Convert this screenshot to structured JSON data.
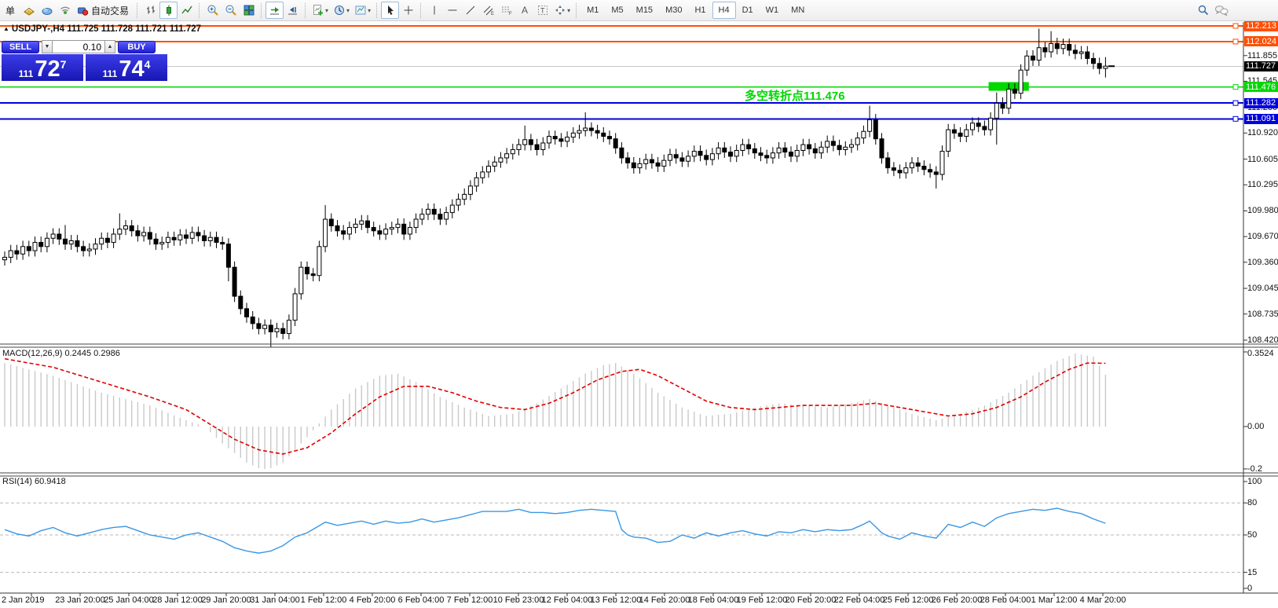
{
  "toolbar": {
    "order_label": "单",
    "autotrade_label": "自动交易",
    "timeframes": [
      "M1",
      "M5",
      "M15",
      "M30",
      "H1",
      "H4",
      "D1",
      "W1",
      "MN"
    ],
    "active_timeframe": "H4"
  },
  "chart": {
    "title": "USDJPY-,H4 111.725 111.728 111.721 111.727",
    "one_click": {
      "sell_label": "SELL",
      "buy_label": "BUY",
      "volume": "0.10",
      "sell_price_main": "111",
      "sell_price_big": "72",
      "sell_price_sup": "7",
      "buy_price_main": "111",
      "buy_price_big": "74",
      "buy_price_sup": "4"
    },
    "annotation": {
      "text": "多空转折点111.476",
      "color": "#00d800"
    }
  },
  "chart_data": {
    "type": "candlestick",
    "symbol": "USDJPY-",
    "period": "H4",
    "ohlc_display": {
      "open": "111.725",
      "high": "111.728",
      "low": "111.721",
      "close": "111.727"
    },
    "price_axis": {
      "max": 112.213,
      "min": 108.42,
      "ticks": [
        112.185,
        111.855,
        111.545,
        111.23,
        110.92,
        110.605,
        110.295,
        109.98,
        109.67,
        109.36,
        109.045,
        108.735,
        108.42
      ]
    },
    "levels": [
      {
        "price": 112.213,
        "color": "#ff4f02",
        "label": "112.213",
        "width": 2,
        "handle": true
      },
      {
        "price": 112.024,
        "color": "#ff4f02",
        "label": "112.024",
        "width": 2,
        "handle": true
      },
      {
        "price": 111.727,
        "color": "#c8c8c8",
        "label": "111.727",
        "label_bg": "#000000",
        "width": 1,
        "handle": false,
        "current": true
      },
      {
        "price": 111.476,
        "color": "#00d800",
        "label": "111.476",
        "width": 1.5,
        "handle": true
      },
      {
        "price": 111.282,
        "color": "#0000dd",
        "label": "111.282",
        "width": 2,
        "handle": true
      },
      {
        "price": 111.091,
        "color": "#0000dd",
        "label": "111.091",
        "width": 2,
        "handle": true
      }
    ],
    "highlight_box": {
      "from_bar": 163,
      "to_bar": 169,
      "price_top": 111.535,
      "price_bottom": 111.43,
      "color": "#00d800"
    },
    "candles": {
      "first_open": 109.39,
      "wick": 0.07,
      "closes": [
        109.42,
        109.5,
        109.46,
        109.55,
        109.5,
        109.6,
        109.55,
        109.65,
        109.7,
        109.64,
        109.58,
        109.62,
        109.55,
        109.5,
        109.52,
        109.58,
        109.65,
        109.6,
        109.7,
        109.76,
        109.8,
        109.74,
        109.68,
        109.72,
        109.64,
        109.58,
        109.6,
        109.66,
        109.63,
        109.69,
        109.65,
        109.72,
        109.68,
        109.62,
        109.66,
        109.6,
        109.58,
        109.3,
        108.95,
        108.8,
        108.7,
        108.62,
        108.56,
        108.6,
        108.52,
        108.56,
        108.5,
        108.66,
        108.98,
        109.3,
        109.22,
        109.2,
        109.55,
        109.88,
        109.8,
        109.74,
        109.7,
        109.78,
        109.82,
        109.86,
        109.78,
        109.74,
        109.7,
        109.76,
        109.78,
        109.82,
        109.7,
        109.78,
        109.88,
        109.94,
        110.0,
        109.94,
        109.88,
        109.96,
        110.05,
        110.12,
        110.18,
        110.28,
        110.38,
        110.45,
        110.52,
        110.57,
        110.62,
        110.67,
        110.72,
        110.78,
        110.84,
        110.78,
        110.72,
        110.8,
        110.88,
        110.85,
        110.82,
        110.87,
        110.92,
        110.95,
        110.98,
        110.95,
        110.92,
        110.88,
        110.85,
        110.74,
        110.62,
        110.56,
        110.5,
        110.55,
        110.6,
        110.56,
        110.52,
        110.59,
        110.66,
        110.62,
        110.58,
        110.64,
        110.7,
        110.65,
        110.6,
        110.67,
        110.74,
        110.69,
        110.64,
        110.71,
        110.78,
        110.73,
        110.68,
        110.65,
        110.62,
        110.68,
        110.74,
        110.69,
        110.64,
        110.71,
        110.78,
        110.73,
        110.68,
        110.75,
        110.82,
        110.77,
        110.72,
        110.75,
        110.78,
        110.86,
        110.94,
        111.08,
        110.85,
        110.62,
        110.5,
        110.47,
        110.44,
        110.5,
        110.56,
        110.52,
        110.48,
        110.45,
        110.42,
        110.7,
        110.96,
        110.92,
        110.88,
        110.96,
        111.04,
        111.0,
        110.96,
        111.1,
        111.28,
        111.22,
        111.45,
        111.4,
        111.68,
        111.85,
        111.8,
        111.95,
        111.9,
        112.0,
        111.94,
        111.99,
        111.92,
        111.88,
        111.9,
        111.82,
        111.76,
        111.7,
        111.727
      ],
      "spikes": {
        "10": [
          0.1,
          0
        ],
        "19": [
          0.12,
          0
        ],
        "37": [
          0,
          0.1
        ],
        "44": [
          0,
          0.12
        ],
        "53": [
          0.1,
          0
        ],
        "86": [
          0.1,
          0
        ],
        "96": [
          0.12,
          0
        ],
        "143": [
          0.1,
          0
        ],
        "154": [
          0,
          0.1
        ],
        "164": [
          0.06,
          0.25
        ],
        "171": [
          0.16,
          0
        ],
        "173": [
          0.08,
          0
        ],
        "182": [
          0.04,
          0.04
        ]
      }
    },
    "macd": {
      "label": "MACD(12,26,9) 0.2445 0.2986",
      "name": "MACD",
      "params": "12,26,9",
      "value_main": 0.2445,
      "value_signal": 0.2986,
      "axis_ticks": [
        {
          "v": 0.3524,
          "label": "0.3524"
        },
        {
          "v": 0,
          "label": "0.00"
        },
        {
          "v": -0.2,
          "label": "-0.2"
        }
      ],
      "hist_color": "#c9c9c9",
      "signal_color": "#e00000",
      "hist_keypoints": [
        [
          0,
          0.3
        ],
        [
          8,
          0.24
        ],
        [
          16,
          0.16
        ],
        [
          24,
          0.1
        ],
        [
          30,
          0.03
        ],
        [
          33,
          0.0
        ],
        [
          36,
          -0.08
        ],
        [
          40,
          -0.17
        ],
        [
          43,
          -0.21
        ],
        [
          46,
          -0.17
        ],
        [
          50,
          -0.05
        ],
        [
          54,
          0.08
        ],
        [
          58,
          0.18
        ],
        [
          62,
          0.24
        ],
        [
          65,
          0.25
        ],
        [
          68,
          0.21
        ],
        [
          72,
          0.14
        ],
        [
          76,
          0.09
        ],
        [
          80,
          0.05
        ],
        [
          84,
          0.06
        ],
        [
          88,
          0.11
        ],
        [
          92,
          0.18
        ],
        [
          96,
          0.25
        ],
        [
          99,
          0.29
        ],
        [
          101,
          0.3
        ],
        [
          104,
          0.25
        ],
        [
          108,
          0.16
        ],
        [
          112,
          0.09
        ],
        [
          116,
          0.05
        ],
        [
          120,
          0.06
        ],
        [
          124,
          0.09
        ],
        [
          128,
          0.11
        ],
        [
          132,
          0.1
        ],
        [
          136,
          0.09
        ],
        [
          140,
          0.11
        ],
        [
          143,
          0.13
        ],
        [
          146,
          0.1
        ],
        [
          150,
          0.06
        ],
        [
          154,
          0.03
        ],
        [
          158,
          0.06
        ],
        [
          162,
          0.1
        ],
        [
          166,
          0.16
        ],
        [
          170,
          0.24
        ],
        [
          174,
          0.31
        ],
        [
          177,
          0.345
        ],
        [
          180,
          0.33
        ],
        [
          182,
          0.2445
        ]
      ],
      "signal_keypoints": [
        [
          0,
          0.32
        ],
        [
          8,
          0.28
        ],
        [
          16,
          0.21
        ],
        [
          24,
          0.14
        ],
        [
          30,
          0.08
        ],
        [
          34,
          0.01
        ],
        [
          38,
          -0.06
        ],
        [
          42,
          -0.11
        ],
        [
          46,
          -0.13
        ],
        [
          50,
          -0.1
        ],
        [
          54,
          -0.03
        ],
        [
          58,
          0.06
        ],
        [
          62,
          0.14
        ],
        [
          66,
          0.19
        ],
        [
          70,
          0.19
        ],
        [
          74,
          0.16
        ],
        [
          78,
          0.12
        ],
        [
          82,
          0.09
        ],
        [
          86,
          0.08
        ],
        [
          90,
          0.11
        ],
        [
          94,
          0.16
        ],
        [
          98,
          0.22
        ],
        [
          102,
          0.26
        ],
        [
          105,
          0.27
        ],
        [
          108,
          0.24
        ],
        [
          112,
          0.18
        ],
        [
          116,
          0.12
        ],
        [
          120,
          0.09
        ],
        [
          124,
          0.08
        ],
        [
          128,
          0.09
        ],
        [
          132,
          0.1
        ],
        [
          136,
          0.1
        ],
        [
          140,
          0.1
        ],
        [
          144,
          0.11
        ],
        [
          148,
          0.09
        ],
        [
          152,
          0.07
        ],
        [
          156,
          0.05
        ],
        [
          160,
          0.06
        ],
        [
          164,
          0.09
        ],
        [
          168,
          0.14
        ],
        [
          172,
          0.21
        ],
        [
          176,
          0.27
        ],
        [
          179,
          0.3
        ],
        [
          182,
          0.2986
        ]
      ]
    },
    "rsi": {
      "label": "RSI(14) 60.9418",
      "name": "RSI",
      "params": "14",
      "value": 60.9418,
      "line_color": "#3b97e3",
      "levels": [
        80,
        50,
        15
      ],
      "axis_ticks": [
        {
          "v": 100,
          "label": "100"
        },
        {
          "v": 80,
          "label": "80"
        },
        {
          "v": 50,
          "label": "50"
        },
        {
          "v": 15,
          "label": "15"
        },
        {
          "v": 0,
          "label": "0"
        }
      ],
      "keypoints": [
        [
          0,
          55
        ],
        [
          2,
          51
        ],
        [
          4,
          49
        ],
        [
          6,
          54
        ],
        [
          8,
          57
        ],
        [
          10,
          52
        ],
        [
          12,
          49
        ],
        [
          14,
          52
        ],
        [
          16,
          55
        ],
        [
          18,
          57
        ],
        [
          20,
          58
        ],
        [
          22,
          54
        ],
        [
          24,
          50
        ],
        [
          26,
          48
        ],
        [
          28,
          46
        ],
        [
          30,
          50
        ],
        [
          32,
          52
        ],
        [
          34,
          48
        ],
        [
          36,
          44
        ],
        [
          38,
          38
        ],
        [
          40,
          35
        ],
        [
          42,
          33
        ],
        [
          44,
          35
        ],
        [
          46,
          40
        ],
        [
          48,
          48
        ],
        [
          50,
          52
        ],
        [
          53,
          62
        ],
        [
          55,
          59
        ],
        [
          57,
          61
        ],
        [
          59,
          63
        ],
        [
          61,
          60
        ],
        [
          63,
          63
        ],
        [
          65,
          61
        ],
        [
          67,
          62
        ],
        [
          69,
          65
        ],
        [
          71,
          62
        ],
        [
          73,
          64
        ],
        [
          75,
          66
        ],
        [
          77,
          69
        ],
        [
          79,
          72
        ],
        [
          81,
          72
        ],
        [
          83,
          72
        ],
        [
          85,
          74
        ],
        [
          87,
          71
        ],
        [
          89,
          71
        ],
        [
          91,
          70
        ],
        [
          93,
          71
        ],
        [
          95,
          73
        ],
        [
          97,
          74
        ],
        [
          99,
          73
        ],
        [
          101,
          72
        ],
        [
          102,
          55
        ],
        [
          103,
          50
        ],
        [
          104,
          48
        ],
        [
          106,
          47
        ],
        [
          108,
          43
        ],
        [
          110,
          44
        ],
        [
          112,
          50
        ],
        [
          114,
          47
        ],
        [
          116,
          52
        ],
        [
          118,
          49
        ],
        [
          120,
          52
        ],
        [
          122,
          54
        ],
        [
          124,
          51
        ],
        [
          126,
          49
        ],
        [
          128,
          53
        ],
        [
          130,
          52
        ],
        [
          132,
          55
        ],
        [
          134,
          53
        ],
        [
          136,
          55
        ],
        [
          138,
          54
        ],
        [
          140,
          55
        ],
        [
          142,
          60
        ],
        [
          143,
          63
        ],
        [
          145,
          52
        ],
        [
          146,
          49
        ],
        [
          148,
          46
        ],
        [
          150,
          52
        ],
        [
          152,
          49
        ],
        [
          154,
          47
        ],
        [
          156,
          60
        ],
        [
          158,
          57
        ],
        [
          160,
          62
        ],
        [
          162,
          58
        ],
        [
          164,
          66
        ],
        [
          166,
          70
        ],
        [
          168,
          72
        ],
        [
          170,
          74
        ],
        [
          172,
          73
        ],
        [
          174,
          75
        ],
        [
          176,
          72
        ],
        [
          178,
          70
        ],
        [
          180,
          65
        ],
        [
          182,
          60.94
        ]
      ]
    },
    "time_labels": [
      "2 Jan 2019",
      "23 Jan 20:00",
      "25 Jan 04:00",
      "28 Jan 12:00",
      "29 Jan 20:00",
      "31 Jan 04:00",
      "1 Feb 12:00",
      "4 Feb 20:00",
      "6 Feb 04:00",
      "7 Feb 12:00",
      "10 Feb 23:00",
      "12 Feb 04:00",
      "13 Feb 12:00",
      "14 Feb 20:00",
      "18 Feb 04:00",
      "19 Feb 12:00",
      "20 Feb 20:00",
      "22 Feb 04:00",
      "25 Feb 12:00",
      "26 Feb 20:00",
      "28 Feb 04:00",
      "1 Mar 12:00",
      "4 Mar 20:00"
    ]
  }
}
